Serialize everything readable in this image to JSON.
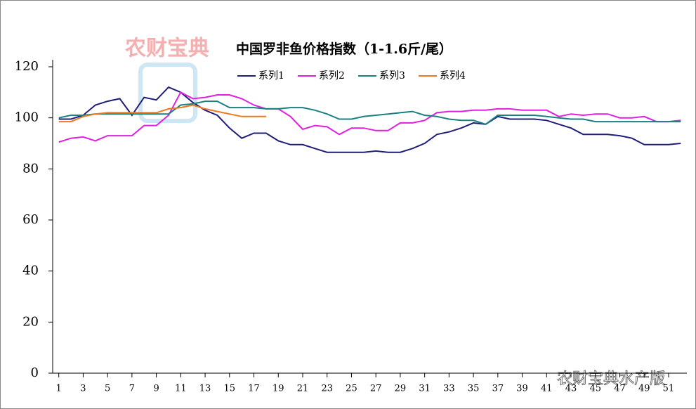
{
  "chart_data": {
    "type": "line",
    "title": "中国罗非鱼价格指数（1-1.6斤/尾）",
    "watermark": "农财宝典",
    "watermark_footer": "农财宝典水产版",
    "x": [
      1,
      2,
      3,
      4,
      5,
      6,
      7,
      8,
      9,
      10,
      11,
      12,
      13,
      14,
      15,
      16,
      17,
      18,
      19,
      20,
      21,
      22,
      23,
      24,
      25,
      26,
      27,
      28,
      29,
      30,
      31,
      32,
      33,
      34,
      35,
      36,
      37,
      38,
      39,
      40,
      41,
      42,
      43,
      44,
      45,
      46,
      47,
      48,
      49,
      50,
      51,
      52
    ],
    "xlim": [
      0.5,
      52.5
    ],
    "xticks": [
      1,
      3,
      5,
      7,
      9,
      11,
      13,
      15,
      17,
      19,
      21,
      23,
      25,
      27,
      29,
      31,
      33,
      35,
      37,
      39,
      41,
      43,
      45,
      47,
      49,
      51
    ],
    "ylim": [
      0,
      120
    ],
    "yticks": [
      0,
      20,
      40,
      60,
      80,
      100,
      120
    ],
    "grid": false,
    "series": [
      {
        "name": "系列1",
        "color": "#1f1f7a",
        "values": [
          99.5,
          99.5,
          101,
          105,
          106.5,
          107.5,
          101,
          108,
          107,
          112,
          110,
          106,
          103,
          101,
          96,
          92,
          94,
          94,
          91,
          89.5,
          89.5,
          88,
          86.5,
          86.5,
          86.5,
          86.5,
          87,
          86.5,
          86.5,
          88,
          90,
          93.5,
          94.5,
          96,
          98,
          97.5,
          100.5,
          99.5,
          99.5,
          99.5,
          99,
          97.5,
          96,
          93.5,
          93.5,
          93.5,
          93,
          92,
          89.5,
          89.5,
          89.5,
          90
        ]
      },
      {
        "name": "系列2",
        "color": "#e020e0",
        "values": [
          90.5,
          92,
          92.5,
          91,
          93,
          93,
          93,
          97,
          97,
          101,
          110,
          107.5,
          108,
          109,
          109,
          107.5,
          105,
          103.5,
          103.5,
          100.5,
          95.5,
          97,
          96.5,
          93.5,
          96,
          96,
          95,
          95,
          98,
          98,
          99,
          102,
          102.5,
          102.5,
          103,
          103,
          103.5,
          103.5,
          103,
          103,
          103,
          100.5,
          101.5,
          101,
          101.5,
          101.5,
          100,
          100,
          100.5,
          98.5,
          98.5,
          99
        ]
      },
      {
        "name": "系列3",
        "color": "#1a8080",
        "values": [
          100,
          101,
          101,
          101.5,
          101.5,
          101.5,
          101.5,
          101.5,
          101.5,
          101.5,
          105,
          105.5,
          106.5,
          106.5,
          104,
          104,
          104,
          103.5,
          103.5,
          104,
          104,
          103,
          101.5,
          99.5,
          99.5,
          100.5,
          101,
          101.5,
          102,
          102.5,
          101,
          100.5,
          99.5,
          99,
          99,
          97.5,
          101,
          101,
          101,
          101,
          100.5,
          100,
          99.5,
          99.5,
          98.5,
          98.5,
          98.5,
          98.5,
          98.5,
          98.5,
          98.5,
          98.5
        ]
      },
      {
        "name": "系列4",
        "color": "#f07820",
        "values": [
          98.5,
          98.5,
          100.5,
          101.5,
          102,
          102,
          102,
          102,
          102,
          103.5,
          104,
          105,
          103.5,
          102.5,
          101.5,
          100.5,
          100.5,
          100.5,
          null,
          null,
          null,
          null,
          null,
          null,
          null,
          null,
          null,
          null,
          null,
          null,
          null,
          null,
          null,
          null,
          null,
          null,
          null,
          null,
          null,
          null,
          null,
          null,
          null,
          null,
          null,
          null,
          null,
          null,
          null,
          null,
          null,
          null
        ]
      }
    ]
  }
}
